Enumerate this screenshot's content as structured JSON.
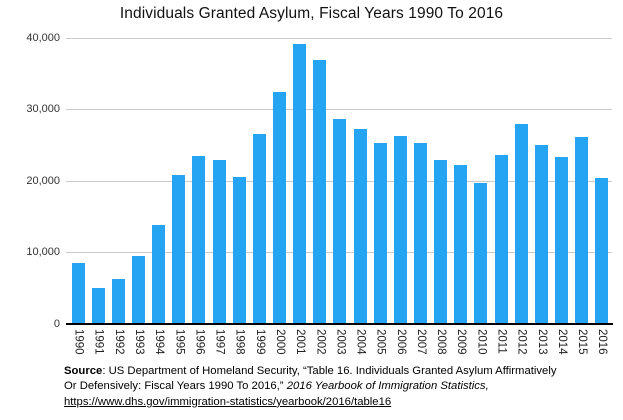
{
  "title": "Individuals Granted Asylum, Fiscal Years 1990 To 2016",
  "colors": {
    "bar": "#25A4F4",
    "gridline": "#cbcbcb",
    "axis": "#000000",
    "title_text": "#111111",
    "tick_text": "#333333"
  },
  "chart_data": {
    "type": "bar",
    "title": "Individuals Granted Asylum, Fiscal Years 1990 To 2016",
    "xlabel": "",
    "ylabel": "",
    "categories": [
      "1990",
      "1991",
      "1992",
      "1993",
      "1994",
      "1995",
      "1996",
      "1997",
      "1998",
      "1999",
      "2000",
      "2001",
      "2002",
      "2003",
      "2004",
      "2005",
      "2006",
      "2007",
      "2008",
      "2009",
      "2010",
      "2011",
      "2012",
      "2013",
      "2014",
      "2015",
      "2016"
    ],
    "values": [
      8472,
      5035,
      6307,
      9551,
      13836,
      20876,
      23552,
      22939,
      20505,
      26578,
      32461,
      39146,
      36894,
      28714,
      27321,
      25257,
      26354,
      25270,
      22930,
      22219,
      19730,
      23669,
      28026,
      25039,
      23374,
      26124,
      20455
    ],
    "ylim": [
      0,
      40000
    ],
    "y_ticks": [
      0,
      10000,
      20000,
      30000,
      40000
    ],
    "y_tick_labels": [
      "0",
      "10,000",
      "20,000",
      "30,000",
      "40,000"
    ],
    "grid": "horizontal",
    "legend": "none",
    "bar_color": "#25A4F4"
  },
  "footer": {
    "source_label": "Source",
    "line1_rest": ": US Department of Homeland Security, “Table 16. Individuals Granted Asylum Affirmatively",
    "line2_normal": "Or Defensively: Fiscal Years 1990 To 2016,” ",
    "line2_italic": "2016 Yearbook of Immigration Statistics,",
    "link": "https://www.dhs.gov/immigration-statistics/yearbook/2016/table16"
  }
}
